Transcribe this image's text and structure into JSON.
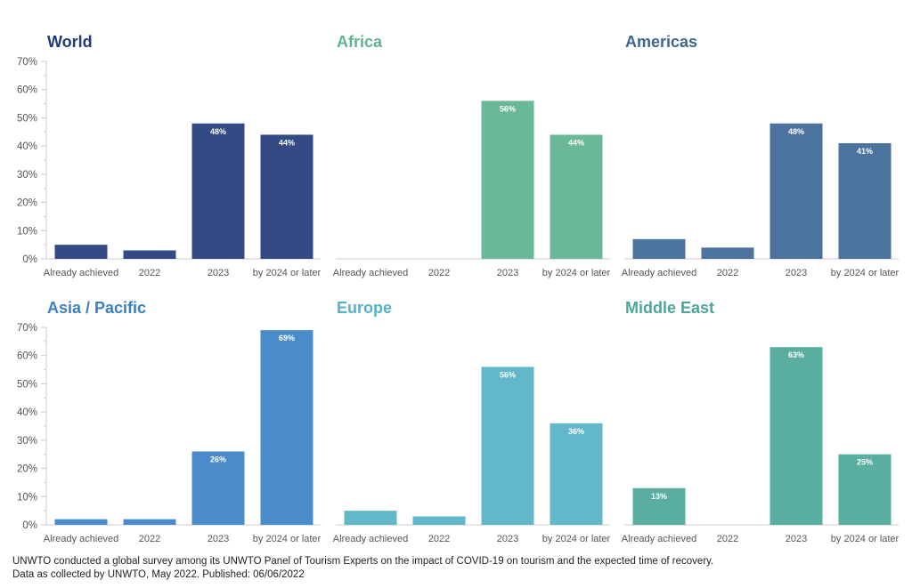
{
  "colors": {
    "world": "#334a85",
    "africa": "#6bb898",
    "americas": "#4b739d",
    "asia_pacific": "#4a8bc9",
    "europe": "#62b7c9",
    "middle_east": "#5aaea0",
    "axis": "#cccccc",
    "tick_text": "#555555"
  },
  "chart_data": [
    {
      "type": "bar",
      "title": "World",
      "title_color": "#1f3b7a",
      "color": "#334a85",
      "categories": [
        "Already achieved",
        "2022",
        "2023",
        "by 2024 or later"
      ],
      "values": [
        5,
        3,
        48,
        44
      ],
      "data_labels": [
        "",
        "",
        "48%",
        "44%"
      ],
      "ylim": [
        0,
        70
      ],
      "yticks": [
        0,
        10,
        20,
        30,
        40,
        50,
        60,
        70
      ],
      "ytick_labels": [
        "0%",
        "10%",
        "20%",
        "30%",
        "40%",
        "50%",
        "60%",
        "70%"
      ],
      "show_yaxis": true
    },
    {
      "type": "bar",
      "title": "Africa",
      "title_color": "#5fb38e",
      "color": "#6bb898",
      "categories": [
        "Already achieved",
        "2022",
        "2023",
        "by 2024 or later"
      ],
      "values": [
        0,
        0,
        56,
        44
      ],
      "data_labels": [
        "",
        "",
        "56%",
        "44%"
      ],
      "ylim": [
        0,
        70
      ],
      "show_yaxis": false
    },
    {
      "type": "bar",
      "title": "Americas",
      "title_color": "#3d6690",
      "color": "#4b739d",
      "categories": [
        "Already achieved",
        "2022",
        "2023",
        "by 2024 or later"
      ],
      "values": [
        7,
        4,
        48,
        41
      ],
      "data_labels": [
        "",
        "",
        "48%",
        "41%"
      ],
      "ylim": [
        0,
        70
      ],
      "show_yaxis": false
    },
    {
      "type": "bar",
      "title": "Asia / Pacific",
      "title_color": "#3a80c4",
      "color": "#4a8bc9",
      "categories": [
        "Already achieved",
        "2022",
        "2023",
        "by 2024 or later"
      ],
      "values": [
        2,
        2,
        26,
        69
      ],
      "data_labels": [
        "",
        "",
        "26%",
        "69%"
      ],
      "ylim": [
        0,
        70
      ],
      "yticks": [
        0,
        10,
        20,
        30,
        40,
        50,
        60,
        70
      ],
      "ytick_labels": [
        "0%",
        "10%",
        "20%",
        "30%",
        "40%",
        "50%",
        "60%",
        "70%"
      ],
      "show_yaxis": true
    },
    {
      "type": "bar",
      "title": "Europe",
      "title_color": "#55b1c6",
      "color": "#62b7c9",
      "categories": [
        "Already achieved",
        "2022",
        "2023",
        "by 2024 or later"
      ],
      "values": [
        5,
        3,
        56,
        36
      ],
      "data_labels": [
        "",
        "",
        "56%",
        "36%"
      ],
      "ylim": [
        0,
        70
      ],
      "show_yaxis": false
    },
    {
      "type": "bar",
      "title": "Middle East",
      "title_color": "#4ea699",
      "color": "#5aaea0",
      "categories": [
        "Already achieved",
        "2022",
        "2023",
        "by 2024 or later"
      ],
      "values": [
        13,
        0,
        63,
        25
      ],
      "data_labels": [
        "13%",
        "",
        "63%",
        "25%"
      ],
      "ylim": [
        0,
        70
      ],
      "show_yaxis": false
    }
  ],
  "footer": {
    "line1": "UNWTO conducted a global survey among its UNWTO Panel of Tourism Experts on the impact of COVID-19 on tourism and the expected time of recovery.",
    "line2": "Data as collected by UNWTO, May 2022. Published: 06/06/2022"
  }
}
